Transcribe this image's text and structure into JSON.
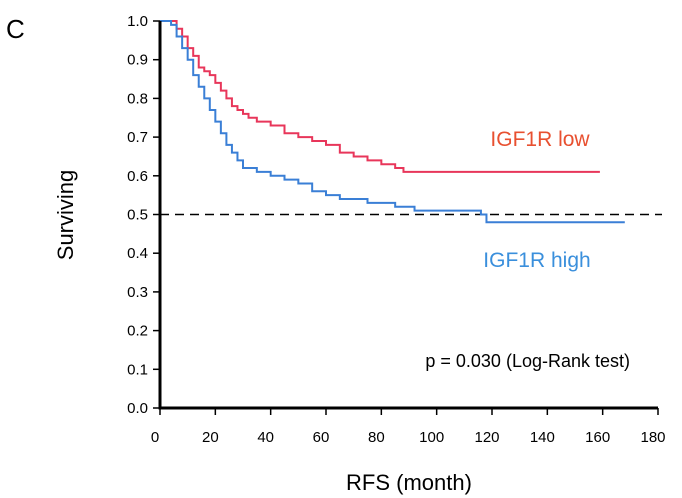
{
  "panel_letter": "C",
  "chart_data": {
    "type": "line",
    "xlabel": "RFS (month)",
    "ylabel": "Surviving",
    "xlim": [
      0,
      180
    ],
    "ylim": [
      0,
      1
    ],
    "x_ticks": [
      0,
      20,
      40,
      60,
      80,
      100,
      120,
      140,
      160,
      180
    ],
    "y_ticks": [
      "0.0",
      "0.1",
      "0.2",
      "0.3",
      "0.4",
      "0.5",
      "0.6",
      "0.7",
      "0.8",
      "0.9",
      "1.0"
    ],
    "grid": false,
    "reference_line": {
      "y": 0.5,
      "style": "dashed",
      "color": "#000000"
    },
    "annotation": "p = 0.030 (Log-Rank test)",
    "series": [
      {
        "name": "IGF1R low",
        "color": "#e8365a",
        "label_color": "#e85030",
        "x": [
          0,
          4,
          6,
          8,
          10,
          12,
          14,
          16,
          18,
          20,
          22,
          24,
          26,
          28,
          30,
          32,
          35,
          40,
          45,
          50,
          55,
          60,
          65,
          70,
          75,
          80,
          85,
          88,
          100,
          120,
          140,
          159
        ],
        "y": [
          1.0,
          1.0,
          0.98,
          0.96,
          0.93,
          0.91,
          0.88,
          0.87,
          0.86,
          0.84,
          0.82,
          0.8,
          0.78,
          0.77,
          0.76,
          0.75,
          0.74,
          0.73,
          0.71,
          0.7,
          0.69,
          0.68,
          0.66,
          0.65,
          0.64,
          0.63,
          0.62,
          0.61,
          0.61,
          0.61,
          0.61,
          0.61
        ]
      },
      {
        "name": "IGF1R high",
        "color": "#3a7fd6",
        "label_color": "#3a8fdc",
        "x": [
          0,
          4,
          6,
          8,
          10,
          12,
          14,
          16,
          18,
          20,
          22,
          24,
          26,
          28,
          30,
          35,
          40,
          45,
          50,
          55,
          60,
          65,
          70,
          75,
          80,
          85,
          90,
          92,
          100,
          110,
          116,
          118,
          130,
          150,
          168
        ],
        "y": [
          1.0,
          0.99,
          0.96,
          0.93,
          0.9,
          0.86,
          0.83,
          0.8,
          0.77,
          0.74,
          0.71,
          0.68,
          0.66,
          0.64,
          0.62,
          0.61,
          0.6,
          0.59,
          0.58,
          0.56,
          0.55,
          0.54,
          0.54,
          0.53,
          0.53,
          0.52,
          0.52,
          0.51,
          0.51,
          0.51,
          0.5,
          0.48,
          0.48,
          0.48,
          0.48
        ]
      }
    ]
  }
}
